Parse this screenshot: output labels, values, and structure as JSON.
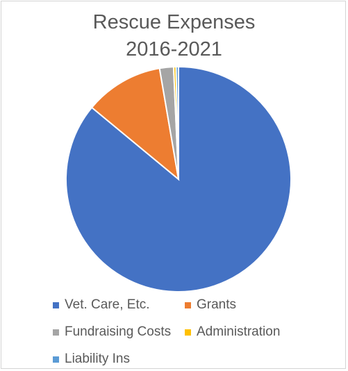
{
  "chart_data": {
    "type": "pie",
    "title": "Rescue Expenses 2016-2021",
    "title_lines": [
      "Rescue Expenses",
      "2016-2021"
    ],
    "legend_position": "bottom",
    "series": [
      {
        "name": "Vet. Care, Etc.",
        "value": 86.0,
        "color": "#4472c4"
      },
      {
        "name": "Grants",
        "value": 11.3,
        "color": "#ed7d31"
      },
      {
        "name": "Fundraising Costs",
        "value": 2.0,
        "color": "#a5a5a5"
      },
      {
        "name": "Administration",
        "value": 0.35,
        "color": "#ffc000"
      },
      {
        "name": "Liability Ins",
        "value": 0.35,
        "color": "#5b9bd5"
      }
    ]
  }
}
